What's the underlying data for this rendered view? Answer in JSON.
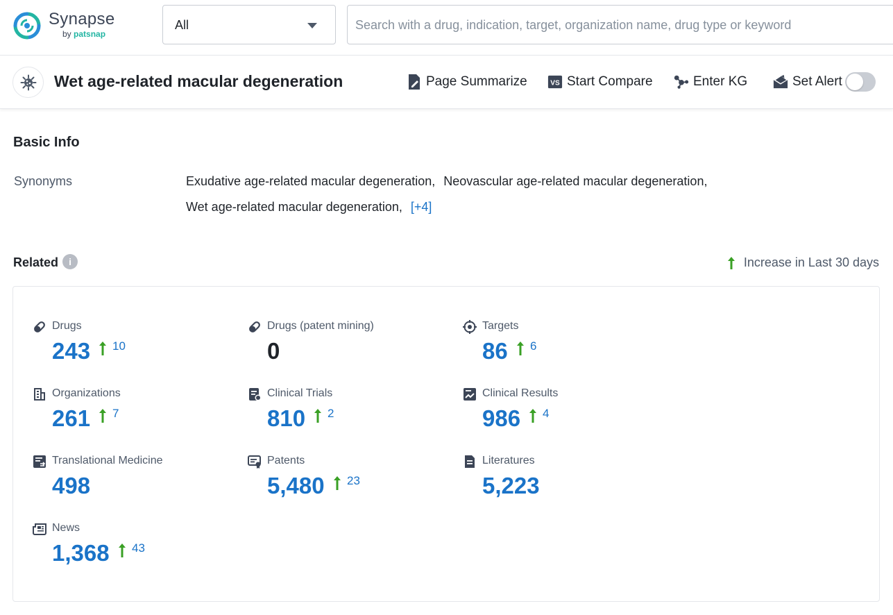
{
  "app": {
    "logo_name": "Synapse",
    "logo_sub_prefix": "by",
    "logo_sub_brand": "patsnap",
    "brand_color": "#23b5a3"
  },
  "search": {
    "scope_value": "All",
    "placeholder": "Search with a drug, indication, target, organization name, drug type or keyword",
    "value": ""
  },
  "header": {
    "title": "Wet age-related macular degeneration",
    "actions": {
      "summarize": "Page Summarize",
      "compare": "Start Compare",
      "kg": "Enter KG",
      "alert": "Set Alert"
    },
    "alert_enabled": false
  },
  "basic_info": {
    "title": "Basic Info",
    "synonyms_label": "Synonyms",
    "synonyms": [
      "Exudative age-related macular degeneration,",
      "Neovascular age-related macular degeneration,",
      "Wet age-related macular degeneration,"
    ],
    "more": "[+4]"
  },
  "related": {
    "title": "Related",
    "legend": "Increase in Last 30 days",
    "accent_color": "#1a73c8",
    "increase_color": "#3aa025",
    "stats": [
      {
        "label": "Drugs",
        "value": "243",
        "increase": "10",
        "icon": "pill-icon"
      },
      {
        "label": "Drugs (patent mining)",
        "value": "0",
        "increase": "",
        "icon": "pill-icon"
      },
      {
        "label": "Targets",
        "value": "86",
        "increase": "6",
        "icon": "target-icon"
      },
      {
        "label": "Organizations",
        "value": "261",
        "increase": "7",
        "icon": "building-icon"
      },
      {
        "label": "Clinical Trials",
        "value": "810",
        "increase": "2",
        "icon": "clipboard-icon"
      },
      {
        "label": "Clinical Results",
        "value": "986",
        "increase": "4",
        "icon": "results-chart-icon"
      },
      {
        "label": "Translational Medicine",
        "value": "498",
        "increase": "",
        "icon": "doc-exchange-icon"
      },
      {
        "label": "Patents",
        "value": "5,480",
        "increase": "23",
        "icon": "patent-icon"
      },
      {
        "label": "Literatures",
        "value": "5,223",
        "increase": "",
        "icon": "document-icon"
      },
      {
        "label": "News",
        "value": "1,368",
        "increase": "43",
        "icon": "newspaper-icon"
      }
    ]
  }
}
